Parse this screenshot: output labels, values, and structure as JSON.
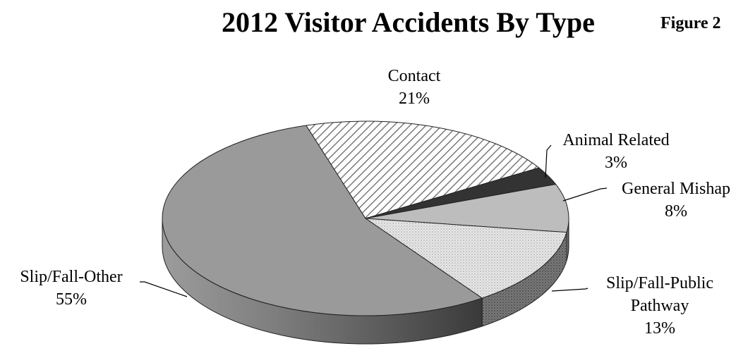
{
  "figure_label": "Figure 2",
  "chart_data": {
    "type": "pie",
    "title": "2012 Visitor Accidents By Type",
    "three_d": true,
    "legend": "none",
    "slices": [
      {
        "label_lines": [
          "Contact"
        ],
        "value": 21,
        "pct_label": "21%",
        "fill": "hatch-diagonal"
      },
      {
        "label_lines": [
          "Animal Related"
        ],
        "value": 3,
        "pct_label": "3%",
        "fill": "#333333"
      },
      {
        "label_lines": [
          "General Mishap"
        ],
        "value": 8,
        "pct_label": "8%",
        "fill": "#bdbdbd"
      },
      {
        "label_lines": [
          "Slip/Fall-Public",
          "Pathway"
        ],
        "value": 13,
        "pct_label": "13%",
        "fill": "dotted-light"
      },
      {
        "label_lines": [
          "Slip/Fall-Other"
        ],
        "value": 55,
        "pct_label": "55%",
        "fill": "#9a9a9a"
      }
    ]
  }
}
